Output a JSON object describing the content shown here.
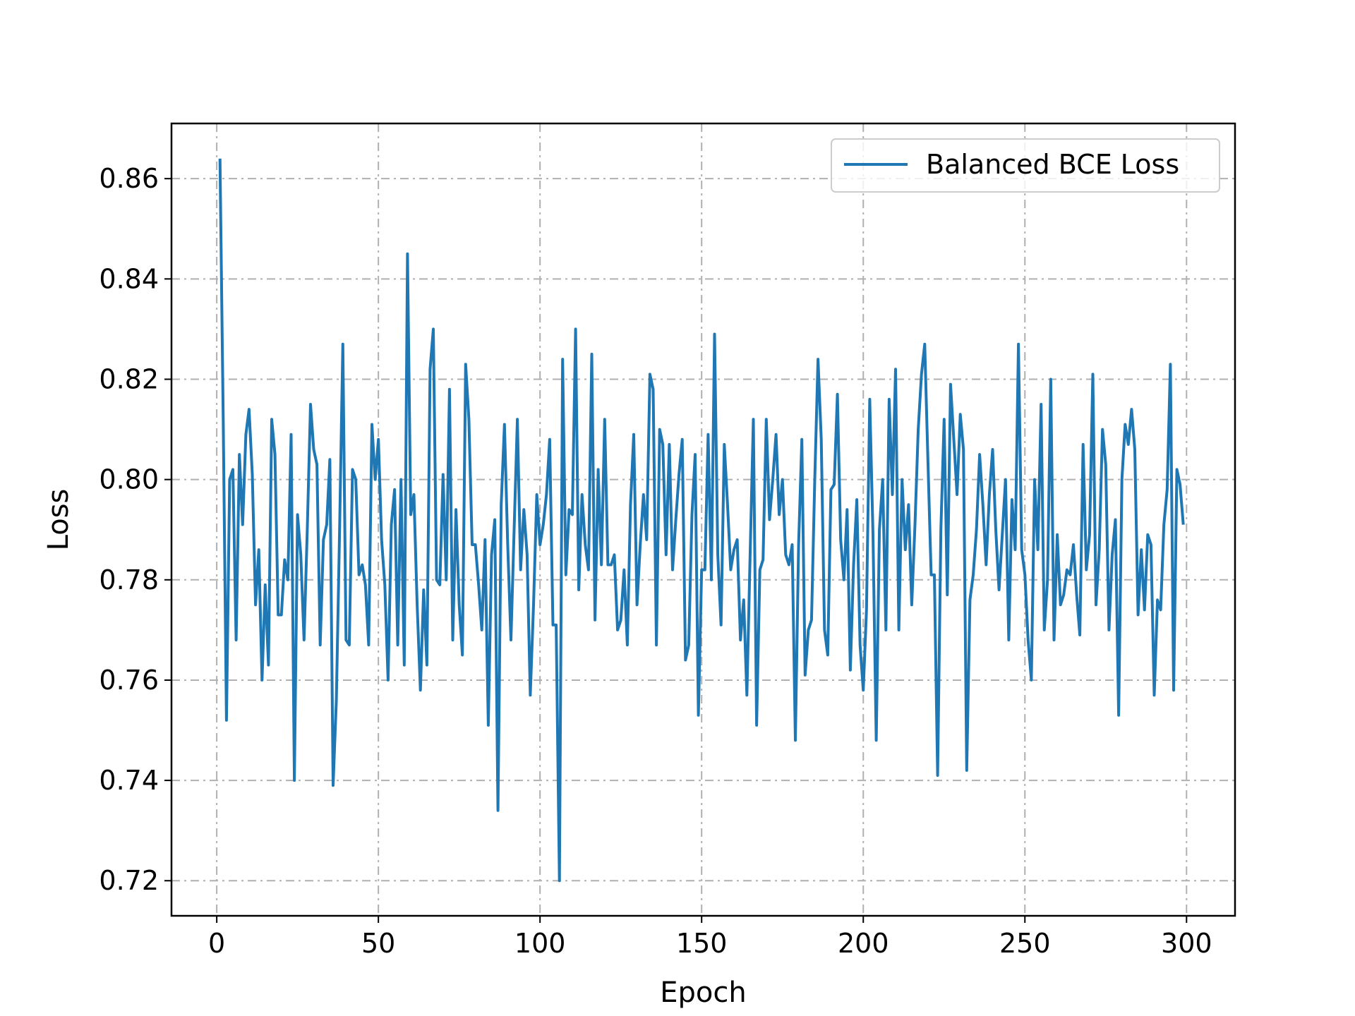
{
  "chart_data": {
    "type": "line",
    "title": "",
    "xlabel": "Epoch",
    "ylabel": "Loss",
    "xlim": [
      -14,
      315
    ],
    "ylim": [
      0.713,
      0.871
    ],
    "xticks": [
      0,
      50,
      100,
      150,
      200,
      250,
      300
    ],
    "yticks": [
      0.72,
      0.74,
      0.76,
      0.78,
      0.8,
      0.82,
      0.84,
      0.86
    ],
    "xtick_labels": [
      "0",
      "50",
      "100",
      "150",
      "200",
      "250",
      "300"
    ],
    "ytick_labels": [
      "0.72",
      "0.74",
      "0.76",
      "0.78",
      "0.80",
      "0.82",
      "0.84",
      "0.86"
    ],
    "grid": true,
    "legend_position": "top-right",
    "series": [
      {
        "name": "Balanced BCE Loss",
        "color": "#1f77b4",
        "x_start": 1,
        "x_step": 1,
        "values": [
          0.864,
          0.812,
          0.752,
          0.8,
          0.802,
          0.768,
          0.805,
          0.791,
          0.809,
          0.814,
          0.801,
          0.775,
          0.786,
          0.76,
          0.779,
          0.763,
          0.812,
          0.805,
          0.773,
          0.773,
          0.784,
          0.78,
          0.809,
          0.74,
          0.793,
          0.785,
          0.768,
          0.79,
          0.815,
          0.806,
          0.803,
          0.767,
          0.788,
          0.791,
          0.804,
          0.739,
          0.756,
          0.79,
          0.827,
          0.768,
          0.767,
          0.802,
          0.8,
          0.781,
          0.783,
          0.779,
          0.767,
          0.811,
          0.8,
          0.808,
          0.788,
          0.779,
          0.76,
          0.791,
          0.798,
          0.767,
          0.8,
          0.763,
          0.845,
          0.793,
          0.797,
          0.775,
          0.758,
          0.778,
          0.763,
          0.822,
          0.83,
          0.78,
          0.779,
          0.801,
          0.78,
          0.818,
          0.768,
          0.794,
          0.775,
          0.765,
          0.823,
          0.812,
          0.787,
          0.787,
          0.779,
          0.77,
          0.788,
          0.751,
          0.785,
          0.792,
          0.734,
          0.795,
          0.811,
          0.787,
          0.768,
          0.79,
          0.812,
          0.782,
          0.794,
          0.785,
          0.757,
          0.775,
          0.797,
          0.787,
          0.791,
          0.797,
          0.808,
          0.771,
          0.771,
          0.72,
          0.824,
          0.781,
          0.794,
          0.793,
          0.83,
          0.778,
          0.797,
          0.787,
          0.782,
          0.825,
          0.772,
          0.802,
          0.783,
          0.812,
          0.783,
          0.783,
          0.785,
          0.77,
          0.772,
          0.782,
          0.767,
          0.795,
          0.809,
          0.775,
          0.787,
          0.797,
          0.788,
          0.821,
          0.818,
          0.767,
          0.81,
          0.807,
          0.785,
          0.807,
          0.782,
          0.792,
          0.801,
          0.808,
          0.764,
          0.767,
          0.793,
          0.805,
          0.753,
          0.782,
          0.782,
          0.809,
          0.78,
          0.829,
          0.785,
          0.771,
          0.807,
          0.795,
          0.782,
          0.786,
          0.788,
          0.768,
          0.776,
          0.757,
          0.785,
          0.812,
          0.751,
          0.782,
          0.784,
          0.812,
          0.792,
          0.8,
          0.809,
          0.793,
          0.8,
          0.785,
          0.783,
          0.787,
          0.748,
          0.787,
          0.808,
          0.761,
          0.77,
          0.772,
          0.8,
          0.824,
          0.808,
          0.77,
          0.765,
          0.798,
          0.799,
          0.817,
          0.788,
          0.78,
          0.794,
          0.762,
          0.783,
          0.796,
          0.767,
          0.758,
          0.774,
          0.816,
          0.789,
          0.748,
          0.79,
          0.8,
          0.77,
          0.816,
          0.797,
          0.822,
          0.77,
          0.8,
          0.786,
          0.795,
          0.775,
          0.791,
          0.81,
          0.821,
          0.827,
          0.804,
          0.781,
          0.781,
          0.741,
          0.79,
          0.812,
          0.777,
          0.819,
          0.808,
          0.797,
          0.813,
          0.806,
          0.742,
          0.776,
          0.781,
          0.79,
          0.805,
          0.795,
          0.783,
          0.797,
          0.806,
          0.79,
          0.778,
          0.789,
          0.8,
          0.768,
          0.796,
          0.786,
          0.827,
          0.786,
          0.781,
          0.768,
          0.76,
          0.8,
          0.786,
          0.815,
          0.77,
          0.78,
          0.82,
          0.768,
          0.789,
          0.775,
          0.777,
          0.782,
          0.781,
          0.787,
          0.777,
          0.769,
          0.807,
          0.782,
          0.789,
          0.821,
          0.775,
          0.786,
          0.81,
          0.803,
          0.77,
          0.785,
          0.792,
          0.753,
          0.8,
          0.811,
          0.807,
          0.814,
          0.806,
          0.773,
          0.786,
          0.774,
          0.789,
          0.787,
          0.757,
          0.776,
          0.774,
          0.791,
          0.798,
          0.823,
          0.758,
          0.802,
          0.799,
          0.791
        ]
      }
    ]
  }
}
